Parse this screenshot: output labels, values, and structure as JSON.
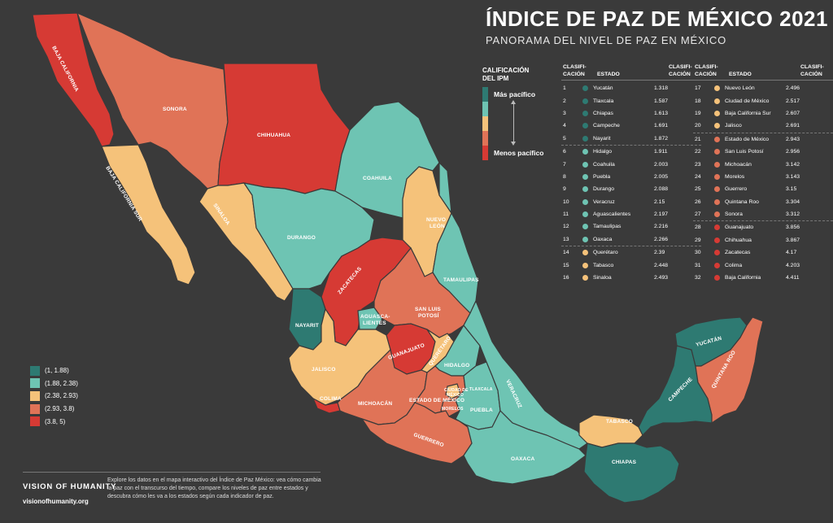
{
  "title": "ÍNDICE DE PAZ DE MÉXICO 2021",
  "subtitle": "PANORAMA DEL NIVEL DE PAZ EN MÉXICO",
  "colors": {
    "c1": "#2e7a72",
    "c2": "#6ec4b3",
    "c3": "#f5c27a",
    "c4": "#e07357",
    "c5": "#d63a34",
    "background": "#3a3a3a"
  },
  "scale": {
    "header_line1": "CALIFICACIÓN",
    "header_line2": "DEL IPM",
    "more": "Más pacífico",
    "less": "Menos pacífico"
  },
  "table_headers": {
    "rank_line1": "CLASIFI-",
    "rank_line2": "CACIÓN",
    "state": "ESTADO",
    "score_line1": "CLASIFI-",
    "score_line2": "CACIÓN"
  },
  "rankings_left": [
    {
      "rank": "1",
      "state": "Yucatán",
      "score": "1.318",
      "cat": "c1"
    },
    {
      "rank": "2",
      "state": "Tlaxcala",
      "score": "1.587",
      "cat": "c1"
    },
    {
      "rank": "3",
      "state": "Chiapas",
      "score": "1.613",
      "cat": "c1"
    },
    {
      "rank": "4",
      "state": "Campeche",
      "score": "1.691",
      "cat": "c1"
    },
    {
      "rank": "5",
      "state": "Nayarit",
      "score": "1.872",
      "cat": "c1"
    },
    {
      "rank": "6",
      "state": "Hidalgo",
      "score": "1.911",
      "cat": "c2"
    },
    {
      "rank": "7",
      "state": "Coahuila",
      "score": "2.003",
      "cat": "c2"
    },
    {
      "rank": "8",
      "state": "Puebla",
      "score": "2.005",
      "cat": "c2"
    },
    {
      "rank": "9",
      "state": "Durango",
      "score": "2.088",
      "cat": "c2"
    },
    {
      "rank": "10",
      "state": "Veracruz",
      "score": "2.15",
      "cat": "c2"
    },
    {
      "rank": "11",
      "state": "Aguascalientes",
      "score": "2.197",
      "cat": "c2"
    },
    {
      "rank": "12",
      "state": "Tamaulipas",
      "score": "2.216",
      "cat": "c2"
    },
    {
      "rank": "13",
      "state": "Oaxaca",
      "score": "2.266",
      "cat": "c2"
    },
    {
      "rank": "14",
      "state": "Querétaro",
      "score": "2.39",
      "cat": "c3"
    },
    {
      "rank": "15",
      "state": "Tabasco",
      "score": "2.448",
      "cat": "c3"
    },
    {
      "rank": "16",
      "state": "Sinaloa",
      "score": "2.493",
      "cat": "c3"
    }
  ],
  "rankings_right": [
    {
      "rank": "17",
      "state": "Nuevo León",
      "score": "2.496",
      "cat": "c3"
    },
    {
      "rank": "18",
      "state": "Ciudad de México",
      "score": "2.517",
      "cat": "c3"
    },
    {
      "rank": "19",
      "state": "Baja California Sur",
      "score": "2.607",
      "cat": "c3"
    },
    {
      "rank": "20",
      "state": "Jalisco",
      "score": "2.691",
      "cat": "c3"
    },
    {
      "rank": "21",
      "state": "Estado de México",
      "score": "2.943",
      "cat": "c4"
    },
    {
      "rank": "22",
      "state": "San Luis Potosí",
      "score": "2.956",
      "cat": "c4"
    },
    {
      "rank": "23",
      "state": "Michoacán",
      "score": "3.142",
      "cat": "c4"
    },
    {
      "rank": "24",
      "state": "Morelos",
      "score": "3.143",
      "cat": "c4"
    },
    {
      "rank": "25",
      "state": "Guerrero",
      "score": "3.15",
      "cat": "c4"
    },
    {
      "rank": "26",
      "state": "Quintana Roo",
      "score": "3.304",
      "cat": "c4"
    },
    {
      "rank": "27",
      "state": "Sonora",
      "score": "3.312",
      "cat": "c4"
    },
    {
      "rank": "28",
      "state": "Guanajuato",
      "score": "3.856",
      "cat": "c5"
    },
    {
      "rank": "29",
      "state": "Chihuahua",
      "score": "3.867",
      "cat": "c5"
    },
    {
      "rank": "30",
      "state": "Zacatecas",
      "score": "4.17",
      "cat": "c5"
    },
    {
      "rank": "31",
      "state": "Colima",
      "score": "4.203",
      "cat": "c5"
    },
    {
      "rank": "32",
      "state": "Baja California",
      "score": "4.411",
      "cat": "c5"
    }
  ],
  "legend": [
    {
      "label": "(1, 1.88)",
      "cat": "c1"
    },
    {
      "label": "(1.88, 2.38)",
      "cat": "c2"
    },
    {
      "label": "(2.38, 2.93)",
      "cat": "c3"
    },
    {
      "label": "(2.93, 3.8)",
      "cat": "c4"
    },
    {
      "label": "(3.8, 5)",
      "cat": "c5"
    }
  ],
  "map_labels": {
    "baja_california": "BAJA CALIFORNIA",
    "sonora": "SONORA",
    "chihuahua": "CHIHUAHUA",
    "coahuila": "COAHUILA",
    "baja_california_sur": "BAJA CALIFORNIA SUR",
    "sinaloa": "SINALOA",
    "durango": "DURANGO",
    "nuevo_leon_1": "NUEVO",
    "nuevo_leon_2": "LEÓN",
    "tamaulipas": "TAMAULIPAS",
    "zacatecas": "ZACATECAS",
    "nayarit": "NAYARIT",
    "aguascalientes_1": "AGUASCA-",
    "aguascalientes_2": "LIENTES",
    "san_luis_potosi_1": "SAN LUIS",
    "san_luis_potosi_2": "POTOSÍ",
    "guanajuato": "GUANAJUATO",
    "queretaro": "QUERÉTARO",
    "hidalgo": "HIDALGO",
    "jalisco": "JALISCO",
    "colima": "COLIMA",
    "michoacan": "MICHOACÁN",
    "estado_de_mexico": "ESTADO DE MÉXICO",
    "ciudad_de_mexico_1": "CIUDAD DE",
    "ciudad_de_mexico_2": "MÉXICO",
    "tlaxcala": "TLAXCALA",
    "morelos": "MORELOS",
    "puebla": "PUEBLA",
    "veracruz": "VERACRUZ",
    "guerrero": "GUERRERO",
    "oaxaca": "OAXACA",
    "tabasco": "TABASCO",
    "chiapas": "CHIAPAS",
    "campeche": "CAMPECHE",
    "yucatan": "YUCATÁN",
    "quintana_roo": "QUINTANA ROO"
  },
  "footer": {
    "brand": "VISION OF HUMANITY",
    "url": "visionofhumanity.org",
    "text": "Explore los datos en el mapa interactivo del Índice de Paz México: vea cómo cambia la paz con el transcurso del tiempo, compare los niveles de paz entre estados y descubra cómo les va a los estados según cada indicador de paz."
  }
}
